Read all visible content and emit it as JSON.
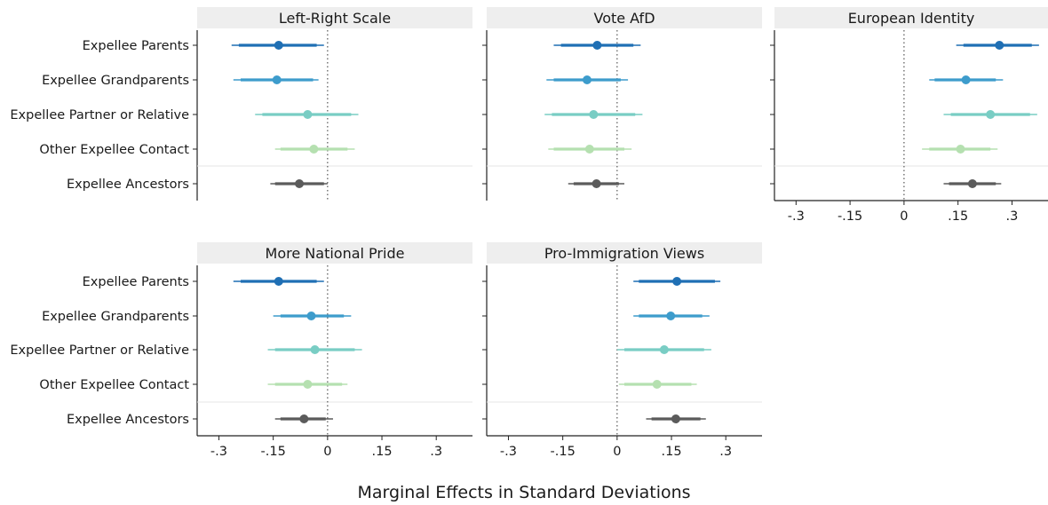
{
  "figure": {
    "xlabel": "Marginal Effects in Standard Deviations",
    "row_labels": [
      "Expellee Parents",
      "Expellee Grandparents",
      "Expellee Partner or Relative",
      "Other Expellee Contact",
      "Expellee Ancestors"
    ],
    "x_ticks": [
      -0.3,
      -0.15,
      0,
      0.15,
      0.3
    ],
    "x_tick_labels": [
      "-.3",
      "-.15",
      "0",
      ".15",
      ".3"
    ],
    "xlim": [
      -0.36,
      0.4
    ],
    "colors": [
      "#1f6fb4",
      "#3d9ccc",
      "#79cdc4",
      "#b5e0b0",
      "#5b5b5b"
    ]
  },
  "chart_data": [
    {
      "type": "coefficient-plot",
      "title": "Left-Right Scale",
      "series": [
        {
          "name": "Expellee Parents",
          "estimate": -0.135,
          "ci90": [
            -0.245,
            -0.03
          ],
          "ci95": [
            -0.265,
            -0.01
          ]
        },
        {
          "name": "Expellee Grandparents",
          "estimate": -0.14,
          "ci90": [
            -0.24,
            -0.04
          ],
          "ci95": [
            -0.26,
            -0.025
          ]
        },
        {
          "name": "Expellee Partner or Relative",
          "estimate": -0.055,
          "ci90": [
            -0.18,
            0.065
          ],
          "ci95": [
            -0.2,
            0.085
          ]
        },
        {
          "name": "Other Expellee Contact",
          "estimate": -0.038,
          "ci90": [
            -0.13,
            0.055
          ],
          "ci95": [
            -0.145,
            0.075
          ]
        },
        {
          "name": "Expellee Ancestors",
          "estimate": -0.078,
          "ci90": [
            -0.145,
            -0.01
          ],
          "ci95": [
            -0.158,
            0.0
          ]
        }
      ]
    },
    {
      "type": "coefficient-plot",
      "title": "Vote AfD",
      "series": [
        {
          "name": "Expellee Parents",
          "estimate": -0.055,
          "ci90": [
            -0.155,
            0.045
          ],
          "ci95": [
            -0.175,
            0.065
          ]
        },
        {
          "name": "Expellee Grandparents",
          "estimate": -0.083,
          "ci90": [
            -0.175,
            0.01
          ],
          "ci95": [
            -0.195,
            0.03
          ]
        },
        {
          "name": "Expellee Partner or Relative",
          "estimate": -0.065,
          "ci90": [
            -0.18,
            0.05
          ],
          "ci95": [
            -0.2,
            0.07
          ]
        },
        {
          "name": "Other Expellee Contact",
          "estimate": -0.076,
          "ci90": [
            -0.175,
            0.02
          ],
          "ci95": [
            -0.19,
            0.04
          ]
        },
        {
          "name": "Expellee Ancestors",
          "estimate": -0.057,
          "ci90": [
            -0.12,
            0.005
          ],
          "ci95": [
            -0.135,
            0.02
          ]
        }
      ]
    },
    {
      "type": "coefficient-plot",
      "title": "European Identity",
      "series": [
        {
          "name": "Expellee Parents",
          "estimate": 0.265,
          "ci90": [
            0.165,
            0.355
          ],
          "ci95": [
            0.145,
            0.375
          ]
        },
        {
          "name": "Expellee Grandparents",
          "estimate": 0.172,
          "ci90": [
            0.085,
            0.255
          ],
          "ci95": [
            0.07,
            0.275
          ]
        },
        {
          "name": "Expellee Partner or Relative",
          "estimate": 0.24,
          "ci90": [
            0.13,
            0.35
          ],
          "ci95": [
            0.11,
            0.37
          ]
        },
        {
          "name": "Other Expellee Contact",
          "estimate": 0.157,
          "ci90": [
            0.07,
            0.24
          ],
          "ci95": [
            0.05,
            0.26
          ]
        },
        {
          "name": "Expellee Ancestors",
          "estimate": 0.19,
          "ci90": [
            0.125,
            0.255
          ],
          "ci95": [
            0.11,
            0.27
          ]
        }
      ]
    },
    {
      "type": "coefficient-plot",
      "title": "More National Pride",
      "series": [
        {
          "name": "Expellee Parents",
          "estimate": -0.135,
          "ci90": [
            -0.24,
            -0.03
          ],
          "ci95": [
            -0.26,
            -0.01
          ]
        },
        {
          "name": "Expellee Grandparents",
          "estimate": -0.045,
          "ci90": [
            -0.13,
            0.045
          ],
          "ci95": [
            -0.15,
            0.065
          ]
        },
        {
          "name": "Expellee Partner or Relative",
          "estimate": -0.035,
          "ci90": [
            -0.145,
            0.075
          ],
          "ci95": [
            -0.165,
            0.095
          ]
        },
        {
          "name": "Other Expellee Contact",
          "estimate": -0.055,
          "ci90": [
            -0.145,
            0.04
          ],
          "ci95": [
            -0.165,
            0.055
          ]
        },
        {
          "name": "Expellee Ancestors",
          "estimate": -0.065,
          "ci90": [
            -0.13,
            -0.005
          ],
          "ci95": [
            -0.145,
            0.015
          ]
        }
      ]
    },
    {
      "type": "coefficient-plot",
      "title": "Pro-Immigration Views",
      "series": [
        {
          "name": "Expellee Parents",
          "estimate": 0.165,
          "ci90": [
            0.06,
            0.27
          ],
          "ci95": [
            0.045,
            0.285
          ]
        },
        {
          "name": "Expellee Grandparents",
          "estimate": 0.148,
          "ci90": [
            0.06,
            0.235
          ],
          "ci95": [
            0.045,
            0.255
          ]
        },
        {
          "name": "Expellee Partner or Relative",
          "estimate": 0.13,
          "ci90": [
            0.02,
            0.24
          ],
          "ci95": [
            0.0,
            0.26
          ]
        },
        {
          "name": "Other Expellee Contact",
          "estimate": 0.11,
          "ci90": [
            0.02,
            0.205
          ],
          "ci95": [
            0.005,
            0.22
          ]
        },
        {
          "name": "Expellee Ancestors",
          "estimate": 0.162,
          "ci90": [
            0.095,
            0.23
          ],
          "ci95": [
            0.08,
            0.245
          ]
        }
      ]
    }
  ]
}
